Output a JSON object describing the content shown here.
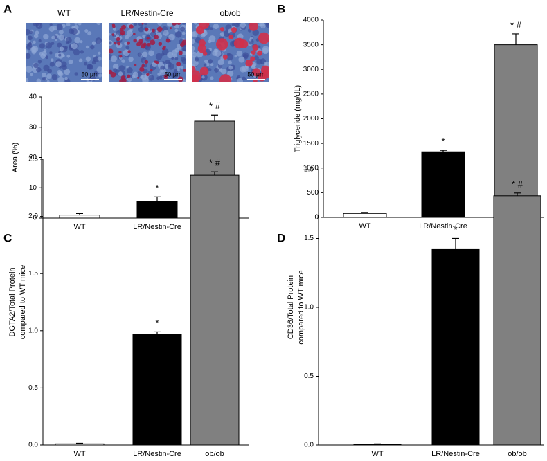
{
  "chart_data": [
    {
      "type": "bar",
      "panel": "A",
      "ylabel": "Area (%)",
      "micrographs": [
        {
          "label": "WT",
          "scale_bar": "50 μm"
        },
        {
          "label": "LR/Nestin-Cre",
          "scale_bar": "50 μm"
        },
        {
          "label": "ob/ob",
          "scale_bar": "50 μm"
        }
      ],
      "categories": [
        "WT",
        "LR/Nestin-Cre",
        "ob/ob"
      ],
      "values": [
        1,
        5.5,
        32
      ],
      "errors": [
        0.5,
        1.5,
        2
      ],
      "annotations": [
        null,
        "*",
        "* #"
      ],
      "colors": [
        "#ffffff",
        "#000000",
        "#808080"
      ],
      "ylim": [
        0,
        40
      ],
      "yticks": [
        0,
        10,
        20,
        30,
        40
      ]
    },
    {
      "type": "bar",
      "panel": "B",
      "ylabel": "Triglyceride (mg/dL)",
      "categories": [
        "WT",
        "LR/Nestin-Cre",
        "ob/ob"
      ],
      "values": [
        80,
        1330,
        3500
      ],
      "errors": [
        20,
        30,
        220
      ],
      "annotations": [
        null,
        "*",
        "* #"
      ],
      "colors": [
        "#ffffff",
        "#000000",
        "#808080"
      ],
      "ylim": [
        0,
        4000
      ],
      "yticks": [
        0,
        500,
        1000,
        1500,
        2000,
        2500,
        3000,
        3500,
        4000
      ]
    },
    {
      "type": "bar",
      "panel": "C",
      "ylabel": [
        "DGTA2/Total Protein",
        "compared to WT mice"
      ],
      "categories": [
        "WT",
        "LR/Nestin-Cre",
        "ob/ob"
      ],
      "values": [
        0.01,
        0.97,
        2.36
      ],
      "errors": [
        0.005,
        0.02,
        0.03
      ],
      "annotations": [
        null,
        "*",
        "* #"
      ],
      "colors": [
        "#ffffff",
        "#000000",
        "#808080"
      ],
      "ylim": [
        0,
        2.5
      ],
      "yticks": [
        {
          "value": 0,
          "label": "0.0"
        },
        0.5,
        {
          "value": 1,
          "label": "1.0"
        },
        1.5,
        {
          "value": 2,
          "label": "2.0"
        },
        2.5
      ]
    },
    {
      "type": "bar",
      "panel": "D",
      "ylabel": [
        "CD36/Total Protein",
        "compared to WT mice"
      ],
      "categories": [
        "WT",
        "LR/Nestin-Cre",
        "ob/ob"
      ],
      "values": [
        0.005,
        1.42,
        1.81
      ],
      "errors": [
        0.003,
        0.08,
        0.02
      ],
      "annotations": [
        null,
        "*",
        "* #"
      ],
      "colors": [
        "#ffffff",
        "#000000",
        "#808080"
      ],
      "ylim": [
        0,
        2
      ],
      "yticks": [
        {
          "value": 0,
          "label": "0.0"
        },
        0.5,
        {
          "value": 1,
          "label": "1.0"
        },
        1.5,
        {
          "value": 2,
          "label": "2.0"
        }
      ]
    }
  ]
}
